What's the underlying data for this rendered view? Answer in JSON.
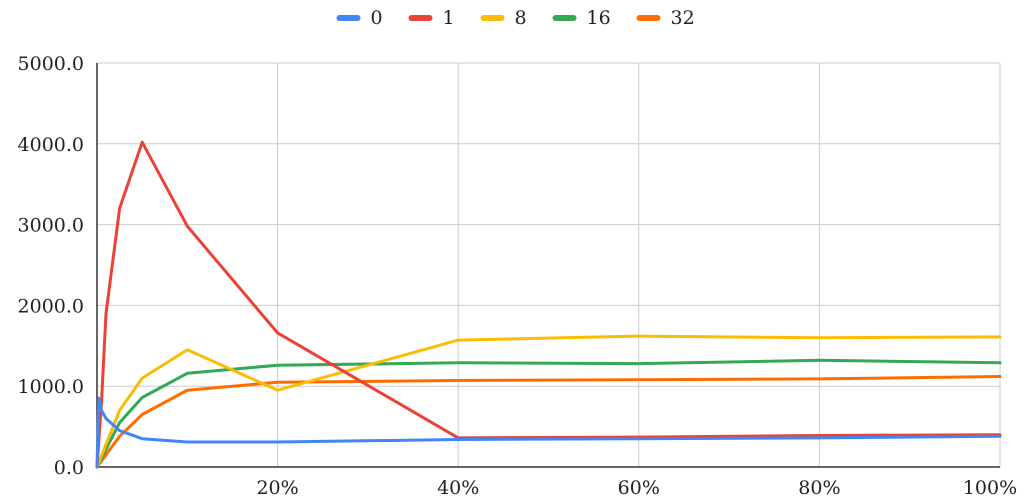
{
  "chart_data": {
    "type": "line",
    "title": "",
    "xlabel": "",
    "ylabel": "",
    "xlim": [
      0,
      100
    ],
    "ylim": [
      0,
      5000
    ],
    "x_ticks": [
      20,
      40,
      60,
      80,
      100
    ],
    "x_tick_labels": [
      "20%",
      "40%",
      "60%",
      "80%",
      "100%"
    ],
    "y_ticks": [
      0,
      1000,
      2000,
      3000,
      4000,
      5000
    ],
    "y_tick_labels": [
      "0.0",
      "1000.0",
      "2000.0",
      "3000.0",
      "4000.0",
      "5000.0"
    ],
    "grid": true,
    "legend_position": "top",
    "series": [
      {
        "name": "0",
        "color": "#4285F4",
        "x": [
          0,
          0.2,
          0.5,
          1,
          2.5,
          5,
          10,
          20,
          40,
          60,
          80,
          100
        ],
        "y": [
          0,
          850,
          700,
          600,
          450,
          350,
          310,
          310,
          340,
          350,
          360,
          380
        ]
      },
      {
        "name": "1",
        "color": "#EA4335",
        "x": [
          0,
          0.5,
          1,
          2.5,
          5,
          10,
          20,
          40,
          60,
          80,
          100
        ],
        "y": [
          0,
          800,
          1900,
          3200,
          4020,
          2980,
          1660,
          360,
          370,
          390,
          400
        ]
      },
      {
        "name": "8",
        "color": "#FBBC04",
        "x": [
          0,
          2.5,
          5,
          10,
          20,
          40,
          60,
          80,
          100
        ],
        "y": [
          0,
          700,
          1100,
          1450,
          950,
          1570,
          1620,
          1600,
          1610
        ]
      },
      {
        "name": "16",
        "color": "#34A853",
        "x": [
          0,
          2.5,
          5,
          10,
          20,
          40,
          60,
          80,
          100
        ],
        "y": [
          0,
          550,
          860,
          1160,
          1260,
          1290,
          1280,
          1320,
          1290
        ]
      },
      {
        "name": "32",
        "color": "#FF6D01",
        "x": [
          0,
          2.5,
          5,
          10,
          20,
          40,
          60,
          80,
          100
        ],
        "y": [
          0,
          380,
          650,
          950,
          1050,
          1070,
          1080,
          1090,
          1120
        ]
      }
    ]
  }
}
